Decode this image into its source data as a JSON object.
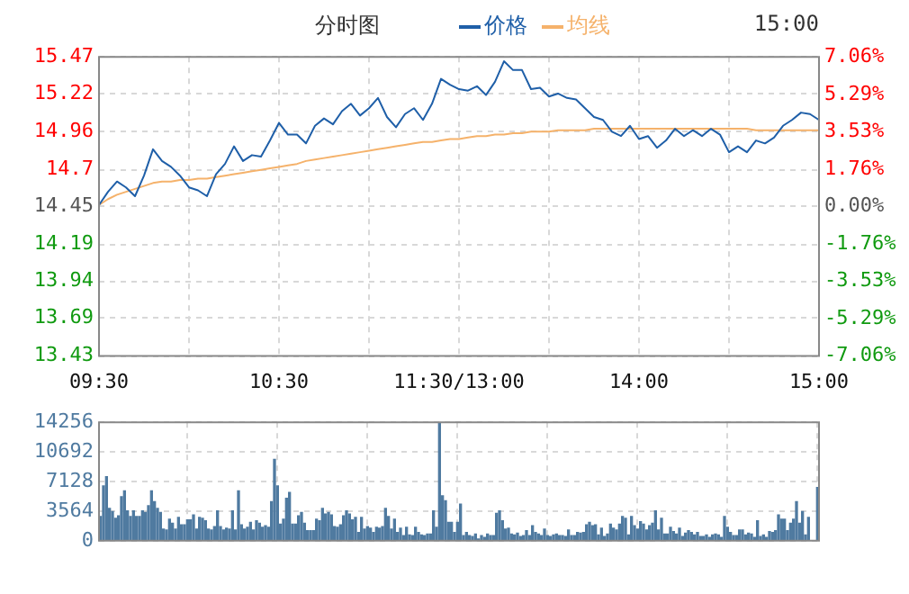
{
  "chart_data": [
    {
      "type": "line",
      "title": "分时图",
      "annotations": [
        "15:00"
      ],
      "legend": "top",
      "grid": true,
      "marker": "none",
      "categories": [
        "09:30",
        null,
        null,
        null,
        null,
        null,
        null,
        null,
        null,
        null,
        null,
        null,
        null,
        null,
        null,
        null,
        null,
        null,
        null,
        null,
        "10:30",
        null,
        null,
        null,
        null,
        null,
        null,
        null,
        null,
        null,
        null,
        null,
        null,
        null,
        null,
        null,
        null,
        null,
        null,
        null,
        "11:30/13:00",
        null,
        null,
        null,
        null,
        null,
        null,
        null,
        null,
        null,
        null,
        null,
        null,
        null,
        null,
        null,
        null,
        null,
        null,
        null,
        "14:00",
        null,
        null,
        null,
        null,
        null,
        null,
        null,
        null,
        null,
        null,
        null,
        null,
        null,
        null,
        null,
        null,
        null,
        null,
        null,
        "15:00"
      ],
      "ylim": [
        13.43,
        15.47
      ],
      "yticks": [
        13.43,
        13.69,
        13.94,
        14.19,
        14.45,
        14.7,
        14.96,
        15.22,
        15.47
      ],
      "y2lim": [
        -7.06,
        7.06
      ],
      "y2ticks": [
        {
          "value": -7.06,
          "label": "-7.06%"
        },
        {
          "value": -5.29,
          "label": "-5.29%"
        },
        {
          "value": -3.53,
          "label": "-3.53%"
        },
        {
          "value": -1.76,
          "label": "-1.76%"
        },
        {
          "value": 0,
          "label": "0.00%"
        },
        {
          "value": 1.76,
          "label": "1.76%"
        },
        {
          "value": 3.53,
          "label": "3.53%"
        },
        {
          "value": 5.29,
          "label": "5.29%"
        },
        {
          "value": 7.06,
          "label": "7.06%"
        }
      ],
      "series": [
        {
          "name": "价格",
          "color": "#1f5fa8",
          "values": [
            14.46,
            14.55,
            14.62,
            14.58,
            14.52,
            14.66,
            14.84,
            14.76,
            14.72,
            14.66,
            14.58,
            14.56,
            14.52,
            14.67,
            14.74,
            14.86,
            14.76,
            14.8,
            14.79,
            14.9,
            15.02,
            14.94,
            14.94,
            14.88,
            15.0,
            15.05,
            15.01,
            15.1,
            15.15,
            15.07,
            15.12,
            15.19,
            15.06,
            14.99,
            15.08,
            15.12,
            15.04,
            15.15,
            15.32,
            15.28,
            15.25,
            15.24,
            15.27,
            15.21,
            15.3,
            15.44,
            15.38,
            15.38,
            15.25,
            15.26,
            15.2,
            15.22,
            15.19,
            15.18,
            15.12,
            15.06,
            15.04,
            14.96,
            14.93,
            15.0,
            14.91,
            14.93,
            14.85,
            14.9,
            14.98,
            14.93,
            14.97,
            14.93,
            14.98,
            14.94,
            14.82,
            14.86,
            14.82,
            14.9,
            14.88,
            14.92,
            15.0,
            15.04,
            15.09,
            15.08,
            15.04
          ]
        },
        {
          "name": "均线",
          "color": "#f5b26b",
          "values": [
            14.46,
            14.5,
            14.53,
            14.55,
            14.57,
            14.59,
            14.61,
            14.62,
            14.62,
            14.63,
            14.63,
            14.64,
            14.64,
            14.65,
            14.66,
            14.67,
            14.68,
            14.69,
            14.7,
            14.71,
            14.72,
            14.73,
            14.74,
            14.76,
            14.77,
            14.78,
            14.79,
            14.8,
            14.81,
            14.82,
            14.83,
            14.84,
            14.85,
            14.86,
            14.87,
            14.88,
            14.89,
            14.89,
            14.9,
            14.91,
            14.91,
            14.92,
            14.93,
            14.93,
            14.94,
            14.94,
            14.95,
            14.95,
            14.96,
            14.96,
            14.96,
            14.97,
            14.97,
            14.97,
            14.97,
            14.98,
            14.98,
            14.98,
            14.98,
            14.98,
            14.98,
            14.98,
            14.98,
            14.98,
            14.98,
            14.98,
            14.98,
            14.98,
            14.98,
            14.98,
            14.98,
            14.98,
            14.98,
            14.97,
            14.97,
            14.97,
            14.97,
            14.97,
            14.97,
            14.97,
            14.97
          ]
        }
      ]
    },
    {
      "type": "bar",
      "grid": true,
      "tick_labels": "y",
      "categories": [
        null,
        null,
        null,
        null,
        null,
        null,
        null,
        null,
        null,
        null,
        null,
        null,
        null,
        null,
        null,
        null,
        null,
        null,
        null,
        null,
        null,
        null,
        null,
        null,
        null,
        null,
        null,
        null,
        null,
        null,
        null,
        null,
        null,
        null,
        null,
        null,
        null,
        null,
        null,
        null,
        null,
        null,
        null,
        null,
        null,
        null,
        null,
        null,
        null,
        null,
        null,
        null,
        null,
        null,
        null,
        null,
        null,
        null,
        null,
        null,
        null,
        null,
        null,
        null,
        null,
        null,
        null,
        null,
        null,
        null,
        null,
        null,
        null,
        null,
        null,
        null,
        null,
        null,
        null,
        null,
        null,
        null,
        null,
        null,
        null,
        null,
        null,
        null,
        null,
        null,
        null,
        null,
        null,
        null,
        null,
        null,
        null,
        null,
        null,
        null,
        null,
        null,
        null,
        null,
        null,
        null,
        null,
        null,
        null,
        null,
        null,
        null,
        null,
        null,
        null,
        null,
        null,
        null,
        null,
        null,
        null,
        null,
        null,
        null,
        null,
        null,
        null,
        null,
        null,
        null,
        null,
        null,
        null,
        null,
        null,
        null,
        null,
        null,
        null,
        null,
        null,
        null,
        null,
        null,
        null,
        null,
        null,
        null,
        null,
        null,
        null,
        null,
        null,
        null,
        null,
        null,
        null,
        null,
        null,
        null,
        null,
        null,
        null,
        null,
        null,
        null,
        null,
        null,
        null,
        null,
        null,
        null,
        null,
        null,
        null,
        null,
        null,
        null,
        null,
        null,
        null,
        null,
        null,
        null,
        null,
        null,
        null,
        null,
        null,
        null,
        null,
        null,
        null,
        null,
        null,
        null,
        null,
        null,
        null,
        null,
        null,
        null,
        null,
        null,
        null,
        null,
        null,
        null,
        null,
        null,
        null,
        null,
        null,
        null,
        null,
        null,
        null,
        null,
        null,
        null,
        null,
        null,
        null,
        null,
        null,
        null,
        null,
        null,
        null,
        null,
        null,
        null,
        null,
        null,
        null,
        null,
        null,
        null,
        null,
        null
      ],
      "ylim": [
        0,
        14256
      ],
      "yticks": [
        0,
        3564,
        7128,
        10692,
        14256
      ],
      "series": [
        {
          "color": "#4f7aa0",
          "values": [
            2900,
            6600,
            7700,
            3900,
            3500,
            2700,
            3000,
            5300,
            6000,
            3600,
            2900,
            3600,
            2900,
            2900,
            3600,
            3400,
            4200,
            6000,
            4700,
            3900,
            3400,
            1400,
            1300,
            2600,
            2100,
            1400,
            2800,
            1900,
            1900,
            2500,
            2500,
            3100,
            1400,
            2800,
            2700,
            2400,
            1400,
            1300,
            1700,
            3600,
            1700,
            1300,
            1500,
            1400,
            3600,
            1300,
            6000,
            1900,
            1400,
            1600,
            2200,
            1300,
            2400,
            2100,
            1600,
            1800,
            1600,
            4700,
            9800,
            6600,
            2000,
            2600,
            5100,
            5800,
            2000,
            2000,
            3000,
            3400,
            2100,
            1200,
            1200,
            1200,
            2600,
            2400,
            3900,
            3200,
            3400,
            3100,
            1700,
            1600,
            1900,
            3000,
            3600,
            3200,
            2500,
            2800,
            1000,
            2800,
            1400,
            1700,
            1500,
            1000,
            1600,
            1500,
            1700,
            3900,
            2900,
            1400,
            2600,
            1000,
            1500,
            600,
            1600,
            700,
            600,
            1600,
            1000,
            700,
            600,
            800,
            800,
            3600,
            1600,
            14200,
            5400,
            4800,
            2200,
            2200,
            1000,
            2200,
            4400,
            600,
            1000,
            600,
            500,
            800,
            200,
            600,
            400,
            800,
            600,
            600,
            3300,
            3600,
            2400,
            1400,
            1500,
            800,
            700,
            900,
            500,
            600,
            1200,
            600,
            1800,
            1000,
            800,
            600,
            1400,
            600,
            500,
            700,
            800,
            600,
            600,
            500,
            1300,
            600,
            600,
            1000,
            900,
            1000,
            1900,
            2200,
            1800,
            1900,
            700,
            1500,
            500,
            800,
            2000,
            1500,
            1300,
            2000,
            2900,
            2700,
            700,
            2900,
            1800,
            1400,
            2300,
            2000,
            1300,
            1800,
            2100,
            3600,
            1300,
            2700,
            800,
            800,
            1600,
            1100,
            800,
            1500,
            500,
            900,
            1200,
            1000,
            700,
            1000,
            500,
            500,
            700,
            400,
            700,
            800,
            700,
            400,
            2900,
            1600,
            1000,
            600,
            600,
            1300,
            1300,
            700,
            900,
            800,
            400,
            2400,
            500,
            700,
            400,
            1100,
            1000,
            1200,
            3100,
            2600,
            2600,
            1200,
            2100,
            2600,
            4700,
            2100,
            3500,
            700,
            2800,
            0,
            0,
            6400
          ]
        }
      ]
    }
  ]
}
